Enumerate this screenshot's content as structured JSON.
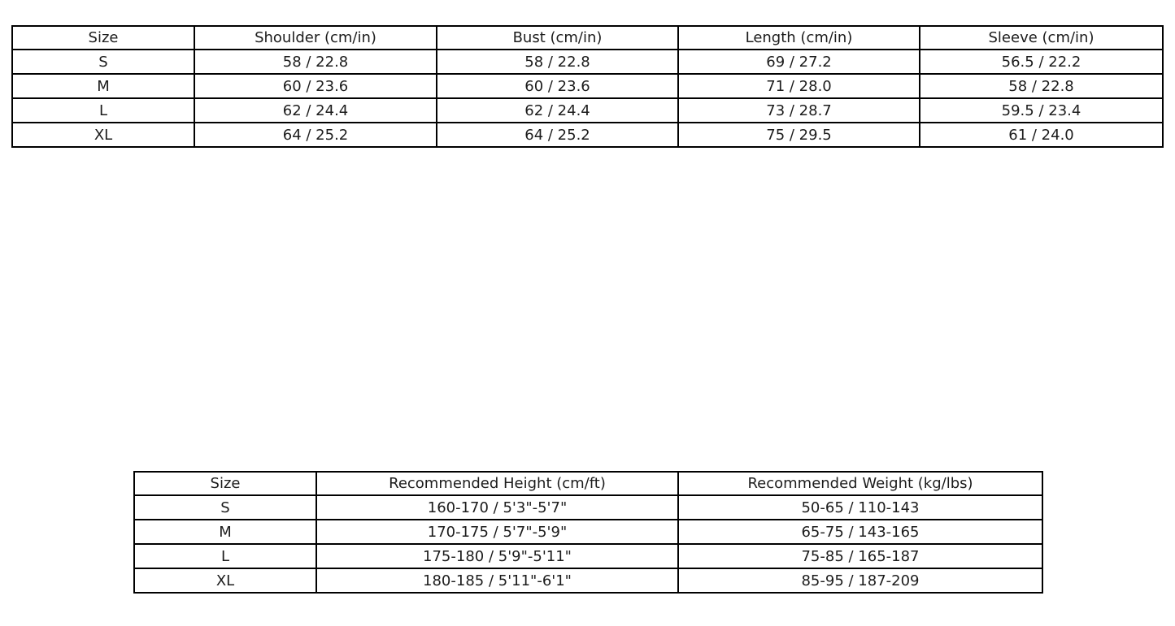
{
  "page": {
    "background_color": "#ffffff",
    "border_color": "#000000",
    "text_color": "#1c1c1c"
  },
  "tables": [
    {
      "name": "garment-measurement-chart",
      "headers": [
        "Size",
        "Shoulder (cm/in)",
        "Bust (cm/in)",
        "Length (cm/in)",
        "Sleeve (cm/in)"
      ],
      "rows": [
        [
          "S",
          "58 / 22.8",
          "58 / 22.8",
          "69 / 27.2",
          "56.5 / 22.2"
        ],
        [
          "M",
          "60 / 23.6",
          "60 / 23.6",
          "71 / 28.0",
          "58 / 22.8"
        ],
        [
          "L",
          "62 / 24.4",
          "62 / 24.4",
          "73 / 28.7",
          "59.5 / 23.4"
        ],
        [
          "XL",
          "64 / 25.2",
          "64 / 25.2",
          "75 / 29.5",
          "61 / 24.0"
        ]
      ]
    },
    {
      "name": "recommended-body-fit-chart",
      "headers": [
        "Size",
        "Recommended Height (cm/ft)",
        "Recommended Weight (kg/lbs)"
      ],
      "rows": [
        [
          "S",
          "160-170 / 5'3\"-5'7\"",
          "50-65 / 110-143"
        ],
        [
          "M",
          "170-175 / 5'7\"-5'9\"",
          "65-75 / 143-165"
        ],
        [
          "L",
          "175-180 / 5'9\"-5'11\"",
          "75-85 / 165-187"
        ],
        [
          "XL",
          "180-185 / 5'11\"-6'1\"",
          "85-95 / 187-209"
        ]
      ]
    }
  ]
}
